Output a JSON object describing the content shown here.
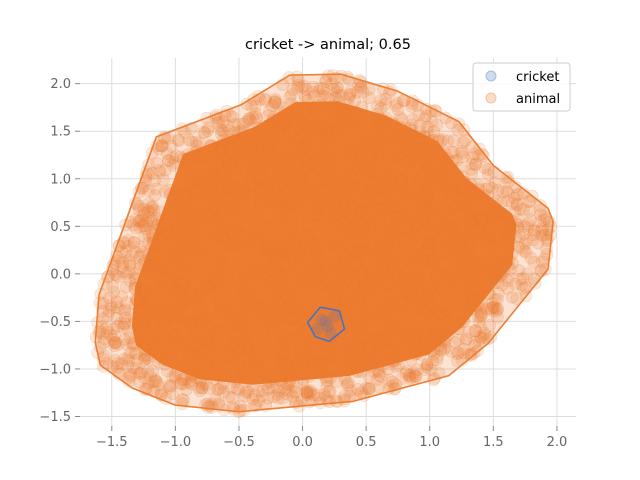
{
  "chart_data": {
    "type": "scatter",
    "title": "cricket -> animal; 0.65",
    "xlabel": "",
    "ylabel": "",
    "xlim": [
      -1.75,
      2.15
    ],
    "ylim": [
      -1.6,
      2.27
    ],
    "x_ticks": [
      -1.5,
      -1.0,
      -0.5,
      0.0,
      0.5,
      1.0,
      1.5,
      2.0
    ],
    "x_tick_labels": [
      "−1.5",
      "−1.0",
      "−0.5",
      "0.0",
      "0.5",
      "1.0",
      "1.5",
      "2.0"
    ],
    "y_ticks": [
      -1.5,
      -1.0,
      -0.5,
      0.0,
      0.5,
      1.0,
      1.5,
      2.0
    ],
    "y_tick_labels": [
      "−1.5",
      "−1.0",
      "−0.5",
      "0.0",
      "0.5",
      "1.0",
      "1.5",
      "2.0"
    ],
    "grid": true,
    "legend_position": "top-right",
    "series": [
      {
        "name": "cricket",
        "color": "#4472c4",
        "hull": [
          [
            0.14,
            -0.35
          ],
          [
            0.29,
            -0.39
          ],
          [
            0.33,
            -0.58
          ],
          [
            0.21,
            -0.71
          ],
          [
            0.1,
            -0.66
          ],
          [
            0.04,
            -0.51
          ],
          [
            0.14,
            -0.35
          ]
        ],
        "points": [
          [
            0.15,
            -0.48
          ],
          [
            0.2,
            -0.55
          ],
          [
            0.25,
            -0.45
          ],
          [
            0.12,
            -0.58
          ],
          [
            0.22,
            -0.62
          ],
          [
            0.18,
            -0.5
          ]
        ]
      },
      {
        "name": "animal",
        "color": "#ed7d31",
        "hull": [
          [
            -0.48,
            1.78
          ],
          [
            -0.1,
            2.09
          ],
          [
            0.3,
            2.1
          ],
          [
            0.75,
            1.92
          ],
          [
            1.23,
            1.6
          ],
          [
            1.5,
            1.14
          ],
          [
            1.93,
            0.69
          ],
          [
            1.97,
            0.55
          ],
          [
            1.93,
            0.05
          ],
          [
            1.46,
            -0.73
          ],
          [
            1.15,
            -1.07
          ],
          [
            0.4,
            -1.34
          ],
          [
            -0.5,
            -1.45
          ],
          [
            -1.0,
            -1.38
          ],
          [
            -1.34,
            -1.2
          ],
          [
            -1.59,
            -0.96
          ],
          [
            -1.63,
            -0.72
          ],
          [
            -1.6,
            -0.22
          ],
          [
            -1.15,
            1.44
          ],
          [
            -0.48,
            1.78
          ]
        ]
      }
    ]
  }
}
